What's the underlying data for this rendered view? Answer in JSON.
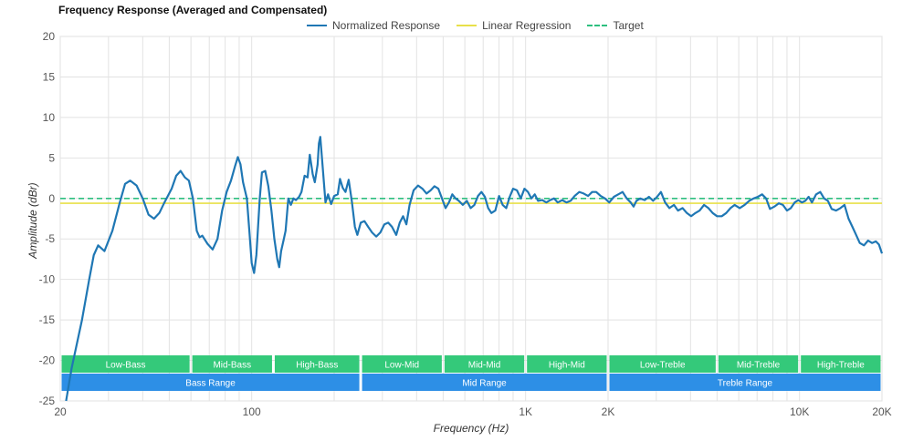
{
  "chart_data": {
    "type": "line",
    "title": "Frequency Response (Averaged and Compensated)",
    "xlabel": "Frequency (Hz)",
    "ylabel": "Amplitude (dBr)",
    "xscale": "log",
    "xlim": [
      20,
      20000
    ],
    "ylim": [
      -25,
      20
    ],
    "x_ticks": [
      {
        "value": 20,
        "label": "20"
      },
      {
        "value": 100,
        "label": "100"
      },
      {
        "value": 1000,
        "label": "1K"
      },
      {
        "value": 2000,
        "label": "2K"
      },
      {
        "value": 10000,
        "label": "10K"
      },
      {
        "value": 20000,
        "label": "20K"
      }
    ],
    "y_ticks": [
      20,
      15,
      10,
      5,
      0,
      -5,
      -10,
      -15,
      -20,
      -25
    ],
    "grid": true,
    "legend_position": "top",
    "series": [
      {
        "name": "Normalized Response",
        "color": "#1f77b4",
        "style": "solid",
        "points": [
          [
            21,
            -25
          ],
          [
            22,
            -21
          ],
          [
            24,
            -15
          ],
          [
            25.5,
            -10
          ],
          [
            26.5,
            -7
          ],
          [
            27.5,
            -5.8
          ],
          [
            29,
            -6.5
          ],
          [
            31,
            -4
          ],
          [
            33,
            -0.5
          ],
          [
            34.5,
            1.8
          ],
          [
            36,
            2.2
          ],
          [
            38,
            1.6
          ],
          [
            40,
            0
          ],
          [
            42,
            -2
          ],
          [
            44,
            -2.5
          ],
          [
            46,
            -1.8
          ],
          [
            48,
            -0.5
          ],
          [
            51,
            1.2
          ],
          [
            53,
            2.8
          ],
          [
            55,
            3.4
          ],
          [
            57,
            2.6
          ],
          [
            59,
            2.2
          ],
          [
            61,
            0
          ],
          [
            63,
            -4
          ],
          [
            64.5,
            -4.8
          ],
          [
            66,
            -4.6
          ],
          [
            69,
            -5.6
          ],
          [
            72,
            -6.3
          ],
          [
            75,
            -5
          ],
          [
            78,
            -1.5
          ],
          [
            81,
            0.8
          ],
          [
            84,
            2.2
          ],
          [
            87,
            4
          ],
          [
            89,
            5.1
          ],
          [
            91,
            4.2
          ],
          [
            93,
            2
          ],
          [
            96,
            0
          ],
          [
            98,
            -4
          ],
          [
            100,
            -8
          ],
          [
            102,
            -9.2
          ],
          [
            104,
            -7
          ],
          [
            107,
            0
          ],
          [
            109,
            3.2
          ],
          [
            112,
            3.4
          ],
          [
            115,
            1.5
          ],
          [
            118,
            -1.5
          ],
          [
            121,
            -5
          ],
          [
            124,
            -7.5
          ],
          [
            126,
            -8.5
          ],
          [
            128,
            -6.5
          ],
          [
            131,
            -5
          ],
          [
            133,
            -4
          ],
          [
            136,
            0
          ],
          [
            139,
            -0.8
          ],
          [
            142,
            0
          ],
          [
            145,
            -0.2
          ],
          [
            149,
            0.2
          ],
          [
            152,
            0.8
          ],
          [
            156,
            2.8
          ],
          [
            160,
            2.6
          ],
          [
            163,
            5.4
          ],
          [
            167,
            3
          ],
          [
            170,
            2
          ],
          [
            174,
            4.2
          ],
          [
            176,
            6.8
          ],
          [
            178,
            7.6
          ],
          [
            182,
            3.5
          ],
          [
            186,
            -0.5
          ],
          [
            190,
            0.5
          ],
          [
            195,
            -0.7
          ],
          [
            200,
            0.3
          ],
          [
            206,
            0.5
          ],
          [
            210,
            2.4
          ],
          [
            215,
            1.3
          ],
          [
            220,
            0.8
          ],
          [
            226,
            2.3
          ],
          [
            232,
            -0.3
          ],
          [
            238,
            -3.5
          ],
          [
            243,
            -4.5
          ],
          [
            250,
            -3
          ],
          [
            258,
            -2.8
          ],
          [
            266,
            -3.5
          ],
          [
            275,
            -4.2
          ],
          [
            285,
            -4.7
          ],
          [
            295,
            -4.2
          ],
          [
            305,
            -3.2
          ],
          [
            315,
            -3
          ],
          [
            325,
            -3.5
          ],
          [
            337,
            -4.5
          ],
          [
            347,
            -3
          ],
          [
            357,
            -2.2
          ],
          [
            367,
            -3.2
          ],
          [
            377,
            -0.8
          ],
          [
            390,
            1
          ],
          [
            405,
            1.6
          ],
          [
            420,
            1.2
          ],
          [
            435,
            0.6
          ],
          [
            450,
            1
          ],
          [
            465,
            1.5
          ],
          [
            480,
            1.2
          ],
          [
            495,
            0
          ],
          [
            510,
            -1.2
          ],
          [
            525,
            -0.5
          ],
          [
            540,
            0.5
          ],
          [
            555,
            0
          ],
          [
            570,
            -0.3
          ],
          [
            590,
            -0.8
          ],
          [
            610,
            -0.3
          ],
          [
            630,
            -1.2
          ],
          [
            650,
            -0.8
          ],
          [
            670,
            0.3
          ],
          [
            690,
            0.8
          ],
          [
            710,
            0.2
          ],
          [
            730,
            -1.2
          ],
          [
            750,
            -1.8
          ],
          [
            775,
            -1.5
          ],
          [
            800,
            0.3
          ],
          [
            825,
            -0.8
          ],
          [
            850,
            -1.2
          ],
          [
            875,
            0.2
          ],
          [
            900,
            1.2
          ],
          [
            930,
            1
          ],
          [
            960,
            0
          ],
          [
            990,
            1.2
          ],
          [
            1020,
            0.8
          ],
          [
            1050,
            0
          ],
          [
            1080,
            0.5
          ],
          [
            1110,
            -0.3
          ],
          [
            1150,
            -0.2
          ],
          [
            1190,
            -0.5
          ],
          [
            1230,
            -0.2
          ],
          [
            1270,
            0
          ],
          [
            1310,
            -0.5
          ],
          [
            1360,
            -0.2
          ],
          [
            1410,
            -0.5
          ],
          [
            1460,
            -0.3
          ],
          [
            1510,
            0.3
          ],
          [
            1570,
            0.8
          ],
          [
            1630,
            0.6
          ],
          [
            1690,
            0.3
          ],
          [
            1750,
            0.8
          ],
          [
            1810,
            0.8
          ],
          [
            1880,
            0.3
          ],
          [
            1950,
            0
          ],
          [
            2020,
            -0.5
          ],
          [
            2100,
            0.2
          ],
          [
            2180,
            0.5
          ],
          [
            2260,
            0.8
          ],
          [
            2340,
            0
          ],
          [
            2420,
            -0.5
          ],
          [
            2480,
            -1
          ],
          [
            2540,
            -0.3
          ],
          [
            2620,
            0
          ],
          [
            2720,
            -0.2
          ],
          [
            2820,
            0.2
          ],
          [
            2920,
            -0.3
          ],
          [
            3020,
            0.2
          ],
          [
            3120,
            0.8
          ],
          [
            3230,
            -0.5
          ],
          [
            3350,
            -1.2
          ],
          [
            3480,
            -0.8
          ],
          [
            3600,
            -1.5
          ],
          [
            3740,
            -1.2
          ],
          [
            3880,
            -1.8
          ],
          [
            4020,
            -2.2
          ],
          [
            4170,
            -1.8
          ],
          [
            4320,
            -1.5
          ],
          [
            4480,
            -0.8
          ],
          [
            4650,
            -1.2
          ],
          [
            4820,
            -1.8
          ],
          [
            5000,
            -2.2
          ],
          [
            5200,
            -2.2
          ],
          [
            5400,
            -1.8
          ],
          [
            5600,
            -1.2
          ],
          [
            5800,
            -0.8
          ],
          [
            6050,
            -1.2
          ],
          [
            6300,
            -0.8
          ],
          [
            6550,
            -0.3
          ],
          [
            6800,
            0
          ],
          [
            7050,
            0.2
          ],
          [
            7300,
            0.5
          ],
          [
            7550,
            0
          ],
          [
            7800,
            -1.3
          ],
          [
            8100,
            -1
          ],
          [
            8400,
            -0.6
          ],
          [
            8700,
            -0.8
          ],
          [
            9000,
            -1.5
          ],
          [
            9300,
            -1.2
          ],
          [
            9600,
            -0.5
          ],
          [
            9900,
            -0.2
          ],
          [
            10200,
            -0.5
          ],
          [
            10500,
            -0.3
          ],
          [
            10800,
            0.2
          ],
          [
            11100,
            -0.5
          ],
          [
            11500,
            0.5
          ],
          [
            11900,
            0.8
          ],
          [
            12300,
            0
          ],
          [
            12700,
            -0.3
          ],
          [
            13100,
            -1.3
          ],
          [
            13600,
            -1.5
          ],
          [
            14100,
            -1.2
          ],
          [
            14600,
            -0.8
          ],
          [
            15100,
            -2.5
          ],
          [
            15600,
            -3.5
          ],
          [
            16100,
            -4.5
          ],
          [
            16600,
            -5.5
          ],
          [
            17200,
            -5.8
          ],
          [
            17800,
            -5.2
          ],
          [
            18400,
            -5.5
          ],
          [
            19000,
            -5.3
          ],
          [
            19500,
            -5.7
          ],
          [
            20000,
            -6.8
          ]
        ]
      },
      {
        "name": "Linear Regression",
        "color": "#e8e04a",
        "style": "solid",
        "points": [
          [
            20,
            -0.6
          ],
          [
            20000,
            -0.6
          ]
        ]
      },
      {
        "name": "Target",
        "color": "#2dbf7f",
        "style": "dashed",
        "points": [
          [
            20,
            0
          ],
          [
            20000,
            0
          ]
        ]
      }
    ],
    "band_rows": [
      {
        "color": "#34c97a",
        "bands": [
          {
            "label": "Low-Bass",
            "from": 20,
            "to": 60
          },
          {
            "label": "Mid-Bass",
            "from": 60,
            "to": 120
          },
          {
            "label": "High-Bass",
            "from": 120,
            "to": 250
          },
          {
            "label": "Low-Mid",
            "from": 250,
            "to": 500
          },
          {
            "label": "Mid-Mid",
            "from": 500,
            "to": 1000
          },
          {
            "label": "High-Mid",
            "from": 1000,
            "to": 2000
          },
          {
            "label": "Low-Treble",
            "from": 2000,
            "to": 5000
          },
          {
            "label": "Mid-Treble",
            "from": 5000,
            "to": 10000
          },
          {
            "label": "High-Treble",
            "from": 10000,
            "to": 20000
          }
        ]
      },
      {
        "color": "#2d8fe6",
        "bands": [
          {
            "label": "Bass Range",
            "from": 20,
            "to": 250
          },
          {
            "label": "Mid Range",
            "from": 250,
            "to": 2000
          },
          {
            "label": "Treble Range",
            "from": 2000,
            "to": 20000
          }
        ]
      }
    ]
  }
}
